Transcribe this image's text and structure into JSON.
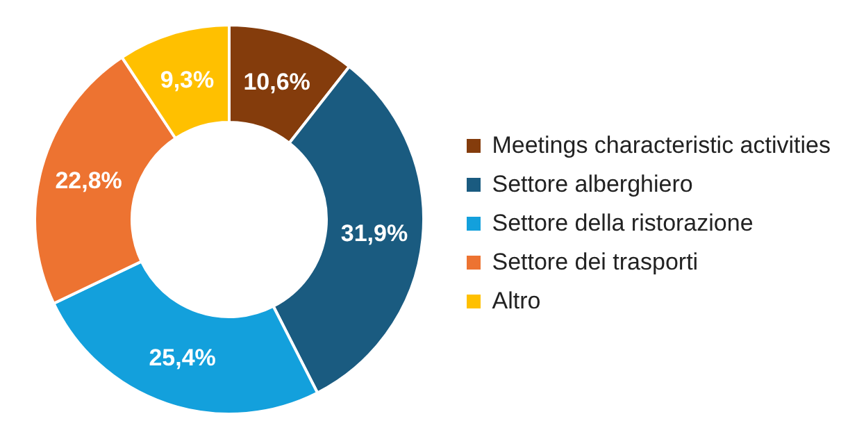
{
  "chart_data": {
    "type": "donut",
    "categories": [
      "Meetings characteristic activities",
      "Settore alberghiero",
      "Settore della ristorazione",
      "Settore dei trasporti",
      "Altro"
    ],
    "values": [
      10.6,
      31.9,
      25.4,
      22.8,
      9.3
    ],
    "value_labels": [
      "10,6%",
      "31,9%",
      "25,4%",
      "22,8%",
      "9,3%"
    ],
    "colors": [
      "#843c0c",
      "#1a5b80",
      "#13a0dc",
      "#ed7331",
      "#ffc000"
    ],
    "legend": "right"
  }
}
